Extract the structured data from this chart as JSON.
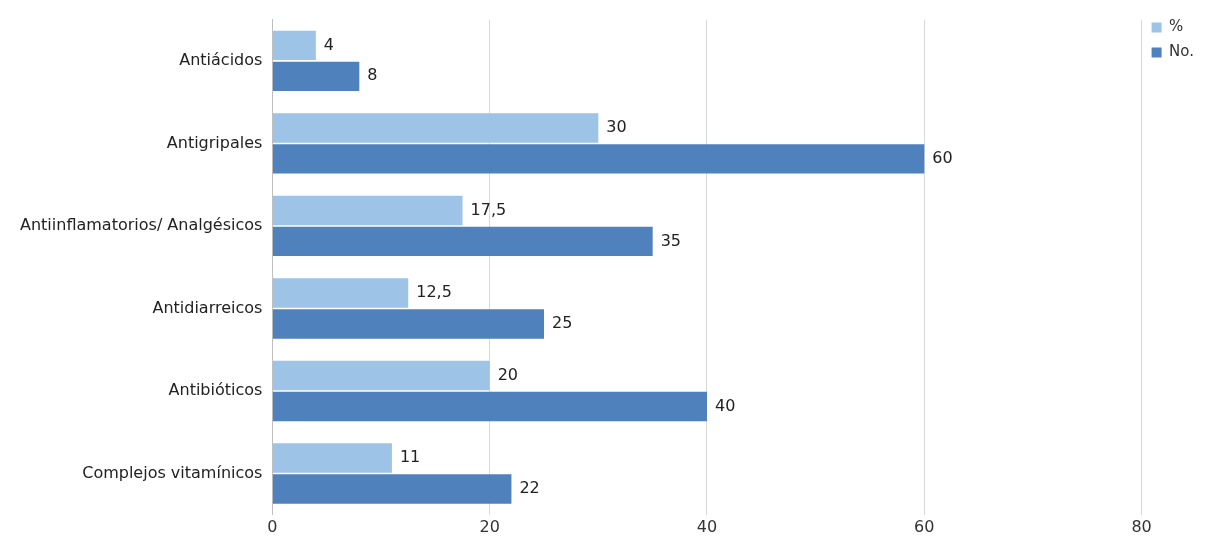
{
  "chart_data": {
    "type": "bar",
    "orientation": "horizontal",
    "categories": [
      "Antiácidos",
      "Antigripales",
      "Antiinflamatorios/ Analgésicos",
      "Antidiarreicos",
      "Antibióticos",
      "Complejos vitamínicos"
    ],
    "series": [
      {
        "name": "%",
        "color": "#9dc3e6",
        "values": [
          4,
          30,
          17.5,
          12.5,
          20,
          11
        ],
        "value_labels": [
          "4",
          "30",
          "17,5",
          "12,5",
          "20",
          "11"
        ]
      },
      {
        "name": "No.",
        "color": "#4f81bd",
        "values": [
          8,
          60,
          35,
          25,
          40,
          22
        ],
        "value_labels": [
          "8",
          "60",
          "35",
          "25",
          "40",
          "22"
        ]
      }
    ],
    "xlim": [
      0,
      80
    ],
    "xticks": [
      0,
      20,
      40,
      60,
      80
    ],
    "grid": "x",
    "legend": "top right"
  }
}
